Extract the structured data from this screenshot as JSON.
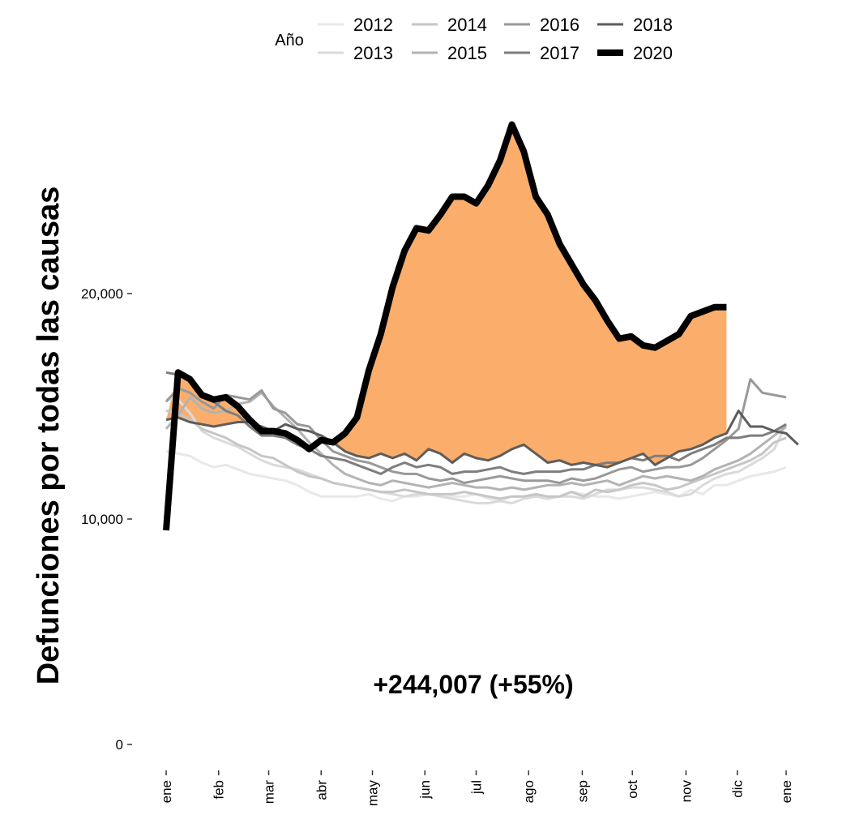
{
  "chart_data": {
    "type": "line",
    "title": "",
    "ylabel": "Defunciones por todas las causas",
    "xlabel": "",
    "ylim": [
      0,
      27500
    ],
    "yticks": [
      {
        "value": 0,
        "label": "0"
      },
      {
        "value": 10000,
        "label": "10,000"
      },
      {
        "value": 20000,
        "label": "20,000"
      }
    ],
    "x_unit": "week",
    "xlim": [
      1,
      53
    ],
    "xticks": [
      {
        "week": 1,
        "label": "ene"
      },
      {
        "week": 5.4,
        "label": "feb"
      },
      {
        "week": 9.6,
        "label": "mar"
      },
      {
        "week": 14,
        "label": "abr"
      },
      {
        "week": 18.3,
        "label": "may"
      },
      {
        "week": 22.7,
        "label": "jun"
      },
      {
        "week": 27,
        "label": "jul"
      },
      {
        "week": 31.4,
        "label": "ago"
      },
      {
        "week": 35.9,
        "label": "sep"
      },
      {
        "week": 40.1,
        "label": "oct"
      },
      {
        "week": 44.6,
        "label": "nov"
      },
      {
        "week": 48.9,
        "label": "dic"
      },
      {
        "week": 53,
        "label": "ene"
      }
    ],
    "legend": {
      "title": "Año",
      "position": "top",
      "entries": [
        "2012",
        "2013",
        "2014",
        "2015",
        "2016",
        "2017",
        "2018",
        "2020"
      ]
    },
    "annotation": {
      "text": "+244,007 (+55%)",
      "color": "#fbae6b"
    },
    "excess_fill_color": "#fbae6b",
    "excess_baseline_year": "2018",
    "series": [
      {
        "name": "2012",
        "color": "#e8e8e8",
        "width": 3,
        "values": [
          13000,
          12900,
          12800,
          12500,
          12300,
          12400,
          12200,
          12000,
          11900,
          11800,
          11700,
          11500,
          11200,
          11000,
          11000,
          11000,
          11000,
          11100,
          10900,
          10800,
          11000,
          11000,
          11100,
          11000,
          11000,
          11000,
          11100,
          10900,
          10800,
          11000,
          11000,
          11000,
          10900,
          11000,
          11200,
          11100,
          11000,
          11000,
          10900,
          11000,
          11100,
          11200,
          11100,
          11000,
          11300,
          11100,
          11500,
          11500,
          11700,
          11900,
          12000,
          12100,
          12300
        ]
      },
      {
        "name": "2013",
        "color": "#dadada",
        "width": 3,
        "values": [
          15300,
          15300,
          14700,
          13900,
          13600,
          13400,
          13200,
          12900,
          12600,
          12400,
          12300,
          12200,
          12000,
          11800,
          11600,
          11500,
          11400,
          11300,
          11200,
          11100,
          11000,
          11100,
          11100,
          11000,
          10900,
          10800,
          10700,
          10700,
          10800,
          10700,
          10900,
          11000,
          10900,
          11000,
          11000,
          10900,
          11100,
          11300,
          11300,
          11400,
          11400,
          11300,
          11200,
          11000,
          11100,
          11500,
          11800,
          12000,
          12100,
          12400,
          12700,
          13100,
          14200
        ]
      },
      {
        "name": "2014",
        "color": "#c6c6c6",
        "width": 3,
        "values": [
          14800,
          14700,
          14400,
          14000,
          13800,
          13600,
          13300,
          13100,
          12800,
          12700,
          12400,
          12100,
          11900,
          11800,
          11600,
          11500,
          11400,
          11300,
          11200,
          11200,
          11300,
          11200,
          11100,
          11100,
          11100,
          11200,
          11100,
          11000,
          10900,
          11000,
          11000,
          11100,
          11000,
          11000,
          11200,
          11000,
          11300,
          11200,
          11300,
          11500,
          11600,
          11500,
          11300,
          11400,
          11600,
          11800,
          12000,
          12200,
          12400,
          12600,
          12900,
          13400,
          13600
        ]
      },
      {
        "name": "2015",
        "color": "#b3b3b3",
        "width": 3,
        "values": [
          14000,
          14600,
          15400,
          14900,
          14700,
          14800,
          15100,
          15200,
          15600,
          15000,
          14500,
          14000,
          13400,
          12900,
          12400,
          12000,
          11800,
          11600,
          11500,
          11700,
          11600,
          11500,
          11400,
          11500,
          11600,
          11500,
          11400,
          11400,
          11300,
          11400,
          11300,
          11400,
          11500,
          11500,
          11600,
          11500,
          11600,
          11700,
          11500,
          11700,
          11900,
          11800,
          11900,
          11800,
          11700,
          11900,
          12200,
          12400,
          12600,
          12900,
          13300,
          13700,
          14100
        ]
      },
      {
        "name": "2016",
        "color": "#999999",
        "width": 3,
        "values": [
          15200,
          15800,
          15600,
          15200,
          14900,
          15500,
          15400,
          15300,
          15700,
          14900,
          14700,
          14200,
          14100,
          13500,
          13000,
          12800,
          12600,
          12500,
          12300,
          12100,
          12000,
          12000,
          11800,
          11700,
          11800,
          11600,
          11700,
          11800,
          11900,
          11800,
          11700,
          11700,
          11700,
          11600,
          11800,
          11700,
          11800,
          12000,
          12200,
          12300,
          12100,
          12200,
          12300,
          12300,
          12400,
          12700,
          13100,
          13500,
          14000,
          16200,
          15600,
          15500,
          15400
        ]
      },
      {
        "name": "2017",
        "color": "#7e7e7e",
        "width": 3,
        "values": [
          16500,
          16400,
          16200,
          15400,
          15200,
          14800,
          14600,
          14100,
          13700,
          13700,
          13600,
          13300,
          13100,
          12800,
          12700,
          12600,
          12400,
          12200,
          12000,
          12300,
          12500,
          12300,
          12400,
          12300,
          12000,
          12100,
          12100,
          12200,
          12300,
          12100,
          12000,
          12100,
          12100,
          12100,
          12200,
          12200,
          12400,
          12500,
          12500,
          12700,
          12600,
          12800,
          12800,
          12600,
          12900,
          13100,
          13300,
          13600,
          13600,
          13700,
          13700,
          13900,
          14200
        ]
      },
      {
        "name": "2018",
        "color": "#5d5d5d",
        "width": 3,
        "values": [
          14400,
          14500,
          14300,
          14200,
          14100,
          14200,
          14300,
          14300,
          14100,
          13900,
          14200,
          14000,
          13900,
          13700,
          13400,
          13000,
          12800,
          12700,
          12900,
          12700,
          12900,
          12600,
          13100,
          12900,
          12500,
          12900,
          12700,
          12600,
          12800,
          13100,
          13300,
          12900,
          12500,
          12600,
          12400,
          12500,
          12400,
          12300,
          12500,
          12700,
          12900,
          12400,
          12700,
          13000,
          13100,
          13300,
          13600,
          13800,
          14800,
          14100,
          14100,
          13900,
          13800,
          13300
        ]
      },
      {
        "name": "2020",
        "color": "#000000",
        "width": 8,
        "values": [
          9500,
          16500,
          16200,
          15500,
          15300,
          15400,
          15000,
          14400,
          13900,
          13900,
          13800,
          13500,
          13100,
          13500,
          13400,
          13800,
          14500,
          16600,
          18200,
          20300,
          21900,
          22900,
          22800,
          23500,
          24300,
          24300,
          24000,
          24800,
          25900,
          27500,
          26300,
          24300,
          23500,
          22200,
          21300,
          20400,
          19700,
          18800,
          18000,
          18100,
          17700,
          17600,
          17900,
          18200,
          19000,
          19200,
          19400,
          19400
        ]
      }
    ]
  }
}
